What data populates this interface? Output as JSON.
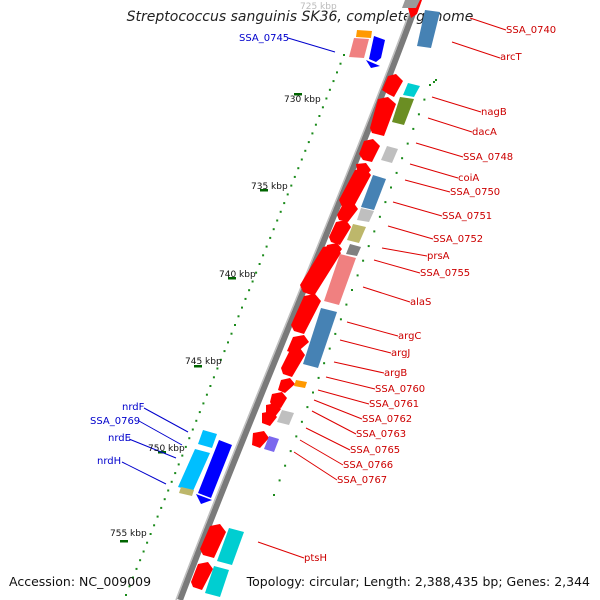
{
  "title": "Streptococcus sanguinis SK36, complete genome",
  "footer": {
    "accession": "Accession: NC_009009",
    "topology": "Topology: circular; Length: 2,388,435 bp; Genes: 2,344"
  },
  "colors": {
    "backbone": "#808080",
    "forward_cds": "#ff0000",
    "reverse_label": "#0000cc",
    "forward_label": "#cc0000",
    "tick_minor": "#1a8a1a",
    "tick_major": "#006400"
  },
  "scale_labels": [
    "725 kbp",
    "730 kbp",
    "735 kbp",
    "740 kbp",
    "745 kbp",
    "750 kbp",
    "755 kbp"
  ],
  "gene_labels_left": [
    "SSA_0745",
    "nrdF",
    "SSA_0769",
    "nrdE",
    "nrdH"
  ],
  "gene_labels_right": [
    "SSA_0740",
    "arcT",
    "nagB",
    "dacA",
    "SSA_0748",
    "coiA",
    "SSA_0750",
    "SSA_0751",
    "SSA_0752",
    "prsA",
    "SSA_0755",
    "alaS",
    "argC",
    "argJ",
    "argB",
    "SSA_0760",
    "SSA_0761",
    "SSA_0762",
    "SSA_0763",
    "SSA_0765",
    "SSA_0766",
    "SSA_0767",
    "ptsH"
  ]
}
